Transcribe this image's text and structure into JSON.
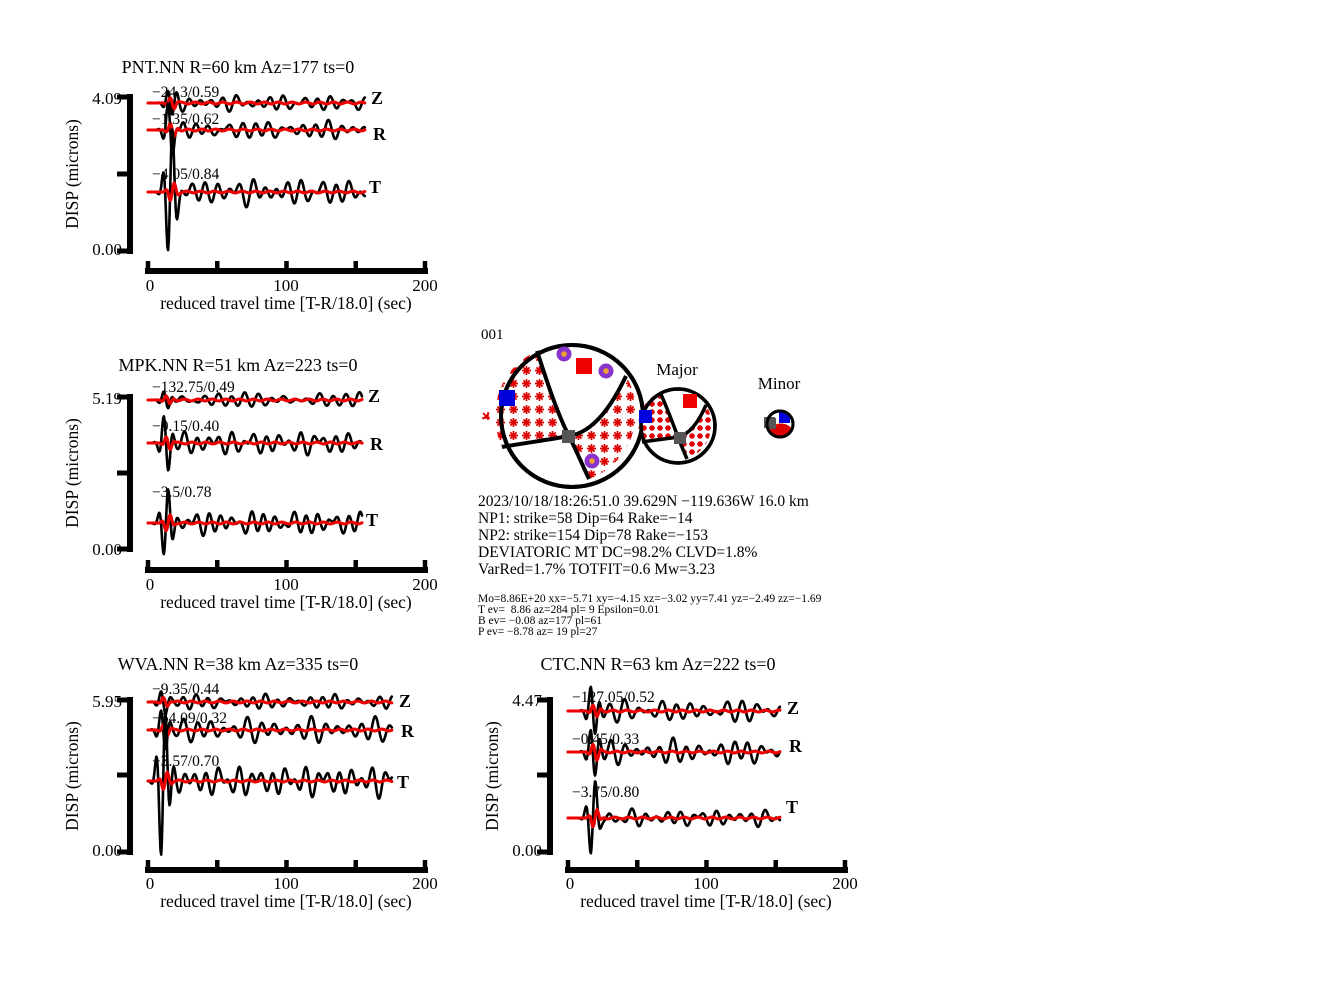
{
  "page": {
    "background": "#ffffff"
  },
  "colors": {
    "observed_trace": "#000000",
    "synthetic_trace": "#ee0000",
    "shift_fit_label": "#a84848",
    "beachball_hatch": "#dd0000",
    "station_square_red": "#ee0000",
    "station_square_blue": "#0000dd",
    "station_circle_purple": "#8833cc",
    "station_circle_dot": "#f0a030",
    "axis_square_gray": "#555555",
    "axis": "#000000"
  },
  "chart_data": {
    "type": "line",
    "description": "Moment tensor inversion waveform fits: observed (black) vs synthetic (red) displacement seismograms, 3 components (Z,R,T) per station; waveform shapes are schematic.",
    "x_axis": {
      "label": "reduced travel time [T-R/18.0] (sec)",
      "tick_labels": [
        "0",
        "100",
        "200"
      ],
      "range": [
        0,
        200
      ],
      "minor_tick_interval": 50
    },
    "y_axis_label": "DISP (microns)",
    "panels": [
      {
        "station": "PNT.NN",
        "title": "PNT.NN R=60 km Az=177 ts=0",
        "ymax": "4.09",
        "ymin": "0.00",
        "traces": [
          {
            "component": "Z",
            "shift_fit": "−24.3/0.59"
          },
          {
            "component": "R",
            "shift_fit": "−1.35/0.62"
          },
          {
            "component": "T",
            "shift_fit": "−4.05/0.84"
          }
        ]
      },
      {
        "station": "MPK.NN",
        "title": "MPK.NN R=51 km Az=223 ts=0",
        "ymax": "5.19",
        "ymin": "0.00",
        "traces": [
          {
            "component": "Z",
            "shift_fit": "−132.75/0.49"
          },
          {
            "component": "R",
            "shift_fit": "−0.15/0.40"
          },
          {
            "component": "T",
            "shift_fit": "−3.5/0.78"
          }
        ]
      },
      {
        "station": "WVA.NN",
        "title": "WVA.NN R=38 km Az=335 ts=0",
        "ymax": "5.95",
        "ymin": "0.00",
        "traces": [
          {
            "component": "Z",
            "shift_fit": "−9.35/0.44"
          },
          {
            "component": "R",
            "shift_fit": "−64.09/0.32"
          },
          {
            "component": "T",
            "shift_fit": "−3.57/0.70"
          }
        ]
      },
      {
        "station": "CTC.NN",
        "title": "CTC.NN R=63 km Az=222 ts=0",
        "ymax": "4.47",
        "ymin": "0.00",
        "traces": [
          {
            "component": "Z",
            "shift_fit": "−127.05/0.52"
          },
          {
            "component": "R",
            "shift_fit": "−0.45/0.33"
          },
          {
            "component": "T",
            "shift_fit": "−3.75/0.80"
          }
        ]
      }
    ]
  },
  "focal_mechanism": {
    "id_label": "001",
    "major_label": "Major",
    "minor_label": "Minor"
  },
  "event_info": {
    "origin_line": "2023/10/18/18:26:51.0 39.629N −119.636W 16.0 km",
    "np1": "NP1: strike=58 Dip=64 Rake=−14",
    "np2": "NP2: strike=154 Dip=78 Rake=−153",
    "mt": "DEVIATORIC MT DC=98.2% CLVD=1.8%",
    "fit": "VarRed=1.7% TOTFIT=0.6 Mw=3.23",
    "mo_line": "Mo=8.86E+20 xx=−5.71 xy=−4.15 xz=−3.02 yy=7.41 yz=−2.49 zz=−1.69",
    "t_axis": "T ev=  8.86 az=284 pl= 9 Epsilon=0.01",
    "b_axis": "B ev= −0.08 az=177 pl=61",
    "p_axis": "P ev= −8.78 az= 19 pl=27"
  }
}
